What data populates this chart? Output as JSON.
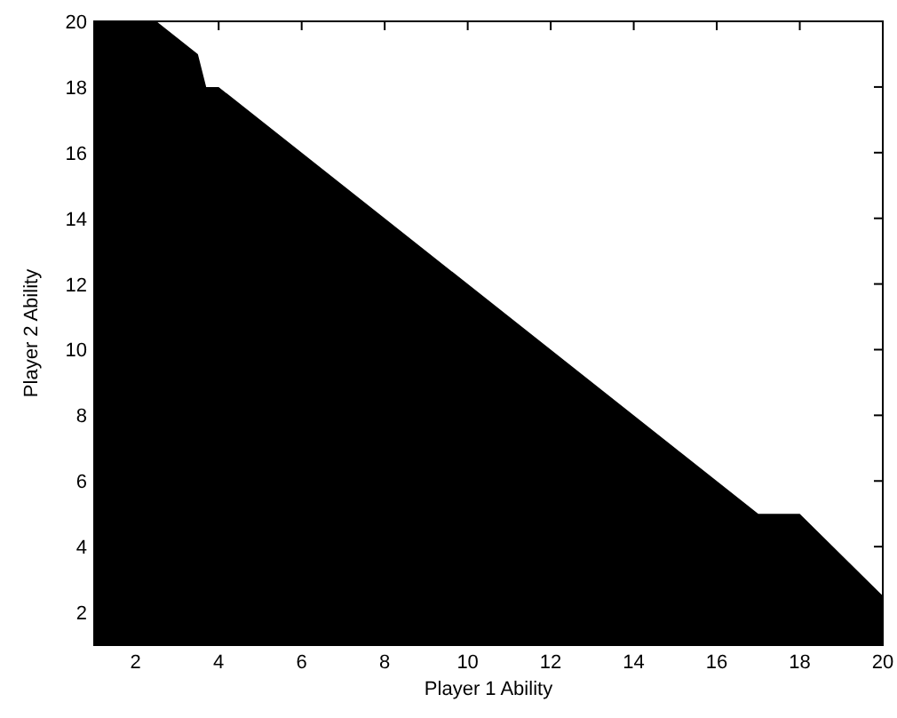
{
  "chart_data": {
    "type": "area",
    "xlabel": "Player 1 Ability",
    "ylabel": "Player 2 Ability",
    "xlim": [
      1,
      20
    ],
    "ylim": [
      1,
      20
    ],
    "xticks": [
      2,
      4,
      6,
      8,
      10,
      12,
      14,
      16,
      18,
      20
    ],
    "yticks": [
      2,
      4,
      6,
      8,
      10,
      12,
      14,
      16,
      18,
      20
    ],
    "series": [
      {
        "color": "#000000",
        "x": [
          1,
          2.5,
          3.5,
          3.7,
          4,
          17,
          18,
          20
        ],
        "values": [
          20,
          20,
          19,
          18,
          18,
          5,
          5,
          2.5
        ]
      }
    ]
  }
}
